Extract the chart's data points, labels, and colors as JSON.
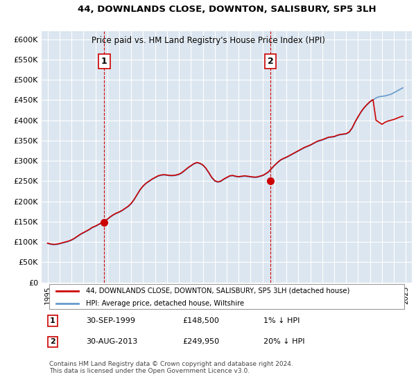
{
  "title": "44, DOWNLANDS CLOSE, DOWNTON, SALISBURY, SP5 3LH",
  "subtitle": "Price paid vs. HM Land Registry's House Price Index (HPI)",
  "xlabel": "",
  "ylabel": "",
  "ylim": [
    0,
    620000
  ],
  "xlim": [
    1994.5,
    2025.5
  ],
  "yticks": [
    0,
    50000,
    100000,
    150000,
    200000,
    250000,
    300000,
    350000,
    400000,
    450000,
    500000,
    550000,
    600000
  ],
  "ytick_labels": [
    "£0",
    "£50K",
    "£100K",
    "£150K",
    "£200K",
    "£250K",
    "£300K",
    "£350K",
    "£400K",
    "£450K",
    "£500K",
    "£550K",
    "£600K"
  ],
  "xticks": [
    1995,
    1996,
    1997,
    1998,
    1999,
    2000,
    2001,
    2002,
    2003,
    2004,
    2005,
    2006,
    2007,
    2008,
    2009,
    2010,
    2011,
    2012,
    2013,
    2014,
    2015,
    2016,
    2017,
    2018,
    2019,
    2020,
    2021,
    2022,
    2023,
    2024,
    2025
  ],
  "bg_color": "#dce6f0",
  "plot_bg": "#dce6f0",
  "line_color_red": "#cc0000",
  "line_color_blue": "#6699cc",
  "marker_color": "#cc0000",
  "vline_color": "#cc0000",
  "sale1_x": 1999.75,
  "sale1_y": 148500,
  "sale2_x": 2013.67,
  "sale2_y": 249950,
  "legend_label_red": "44, DOWNLANDS CLOSE, DOWNTON, SALISBURY, SP5 3LH (detached house)",
  "legend_label_blue": "HPI: Average price, detached house, Wiltshire",
  "annot1_num": "1",
  "annot1_date": "30-SEP-1999",
  "annot1_price": "£148,500",
  "annot1_hpi": "1% ↓ HPI",
  "annot2_num": "2",
  "annot2_date": "30-AUG-2013",
  "annot2_price": "£249,950",
  "annot2_hpi": "20% ↓ HPI",
  "footer": "Contains HM Land Registry data © Crown copyright and database right 2024.\nThis data is licensed under the Open Government Licence v3.0.",
  "hpi_data_x": [
    1995.0,
    1995.25,
    1995.5,
    1995.75,
    1996.0,
    1996.25,
    1996.5,
    1996.75,
    1997.0,
    1997.25,
    1997.5,
    1997.75,
    1998.0,
    1998.25,
    1998.5,
    1998.75,
    1999.0,
    1999.25,
    1999.5,
    1999.75,
    2000.0,
    2000.25,
    2000.5,
    2000.75,
    2001.0,
    2001.25,
    2001.5,
    2001.75,
    2002.0,
    2002.25,
    2002.5,
    2002.75,
    2003.0,
    2003.25,
    2003.5,
    2003.75,
    2004.0,
    2004.25,
    2004.5,
    2004.75,
    2005.0,
    2005.25,
    2005.5,
    2005.75,
    2006.0,
    2006.25,
    2006.5,
    2006.75,
    2007.0,
    2007.25,
    2007.5,
    2007.75,
    2008.0,
    2008.25,
    2008.5,
    2008.75,
    2009.0,
    2009.25,
    2009.5,
    2009.75,
    2010.0,
    2010.25,
    2010.5,
    2010.75,
    2011.0,
    2011.25,
    2011.5,
    2011.75,
    2012.0,
    2012.25,
    2012.5,
    2012.75,
    2013.0,
    2013.25,
    2013.5,
    2013.75,
    2014.0,
    2014.25,
    2014.5,
    2014.75,
    2015.0,
    2015.25,
    2015.5,
    2015.75,
    2016.0,
    2016.25,
    2016.5,
    2016.75,
    2017.0,
    2017.25,
    2017.5,
    2017.75,
    2018.0,
    2018.25,
    2018.5,
    2018.75,
    2019.0,
    2019.25,
    2019.5,
    2019.75,
    2020.0,
    2020.25,
    2020.5,
    2020.75,
    2021.0,
    2021.25,
    2021.5,
    2021.75,
    2022.0,
    2022.25,
    2022.5,
    2022.75,
    2023.0,
    2023.25,
    2023.5,
    2023.75,
    2024.0,
    2024.25,
    2024.5,
    2024.75
  ],
  "hpi_data_y": [
    96000,
    94000,
    93000,
    93500,
    95000,
    97000,
    99000,
    101000,
    104000,
    108000,
    113000,
    118000,
    122000,
    126000,
    130000,
    135000,
    138000,
    142000,
    146000,
    150000,
    155000,
    161000,
    166000,
    170000,
    173000,
    177000,
    182000,
    187000,
    194000,
    204000,
    216000,
    228000,
    237000,
    244000,
    249000,
    254000,
    258000,
    262000,
    264000,
    265000,
    264000,
    263000,
    263000,
    264000,
    266000,
    270000,
    276000,
    282000,
    287000,
    292000,
    295000,
    293000,
    289000,
    281000,
    270000,
    258000,
    250000,
    247000,
    249000,
    254000,
    258000,
    262000,
    263000,
    261000,
    260000,
    261000,
    262000,
    261000,
    260000,
    259000,
    259000,
    261000,
    263000,
    267000,
    272000,
    280000,
    288000,
    295000,
    301000,
    305000,
    308000,
    312000,
    316000,
    320000,
    324000,
    328000,
    332000,
    335000,
    338000,
    342000,
    346000,
    349000,
    351000,
    354000,
    357000,
    358000,
    359000,
    362000,
    364000,
    365000,
    366000,
    370000,
    380000,
    395000,
    408000,
    420000,
    430000,
    438000,
    445000,
    450000,
    455000,
    458000,
    459000,
    460000,
    462000,
    464000,
    468000,
    472000,
    476000,
    480000
  ],
  "price_data_x": [
    1995.0,
    1995.25,
    1995.5,
    1995.75,
    1996.0,
    1996.25,
    1996.5,
    1996.75,
    1997.0,
    1997.25,
    1997.5,
    1997.75,
    1998.0,
    1998.25,
    1998.5,
    1998.75,
    1999.0,
    1999.25,
    1999.5,
    1999.75,
    2000.0,
    2000.25,
    2000.5,
    2000.75,
    2001.0,
    2001.25,
    2001.5,
    2001.75,
    2002.0,
    2002.25,
    2002.5,
    2002.75,
    2003.0,
    2003.25,
    2003.5,
    2003.75,
    2004.0,
    2004.25,
    2004.5,
    2004.75,
    2005.0,
    2005.25,
    2005.5,
    2005.75,
    2006.0,
    2006.25,
    2006.5,
    2006.75,
    2007.0,
    2007.25,
    2007.5,
    2007.75,
    2008.0,
    2008.25,
    2008.5,
    2008.75,
    2009.0,
    2009.25,
    2009.5,
    2009.75,
    2010.0,
    2010.25,
    2010.5,
    2010.75,
    2011.0,
    2011.25,
    2011.5,
    2011.75,
    2012.0,
    2012.25,
    2012.5,
    2012.75,
    2013.0,
    2013.25,
    2013.5,
    2013.75,
    2014.0,
    2014.25,
    2014.5,
    2014.75,
    2015.0,
    2015.25,
    2015.5,
    2015.75,
    2016.0,
    2016.25,
    2016.5,
    2016.75,
    2017.0,
    2017.25,
    2017.5,
    2017.75,
    2018.0,
    2018.25,
    2018.5,
    2018.75,
    2019.0,
    2019.25,
    2019.5,
    2019.75,
    2020.0,
    2020.25,
    2020.5,
    2020.75,
    2021.0,
    2021.25,
    2021.5,
    2021.75,
    2022.0,
    2022.25,
    2022.5,
    2022.75,
    2023.0,
    2023.25,
    2023.5,
    2023.75,
    2024.0,
    2024.25,
    2024.5,
    2024.75
  ],
  "price_data_y": [
    97000,
    95000,
    94000,
    94500,
    96000,
    98000,
    100000,
    102000,
    105000,
    109000,
    114000,
    119000,
    123000,
    127000,
    131000,
    136000,
    139000,
    143000,
    147000,
    151000,
    156000,
    162000,
    167000,
    171000,
    174000,
    178000,
    183000,
    188000,
    195000,
    205000,
    217000,
    229000,
    238000,
    245000,
    250000,
    255000,
    259000,
    263000,
    265000,
    266000,
    265000,
    264000,
    264000,
    265000,
    267000,
    271000,
    277000,
    283000,
    288000,
    293000,
    296000,
    294000,
    290000,
    282000,
    271000,
    259000,
    251000,
    248000,
    250000,
    255000,
    259000,
    263000,
    264000,
    262000,
    261000,
    262000,
    263000,
    262000,
    261000,
    260000,
    260000,
    262000,
    264000,
    268000,
    273000,
    281000,
    289000,
    296000,
    302000,
    306000,
    309000,
    313000,
    317000,
    321000,
    325000,
    329000,
    333000,
    336000,
    339000,
    343000,
    347000,
    350000,
    352000,
    355000,
    358000,
    359000,
    360000,
    363000,
    365000,
    366000,
    367000,
    371000,
    381000,
    396000,
    409000,
    421000,
    431000,
    439000,
    446000,
    451000,
    400000,
    395000,
    390000,
    395000,
    398000,
    400000,
    402000,
    405000,
    408000,
    410000
  ]
}
